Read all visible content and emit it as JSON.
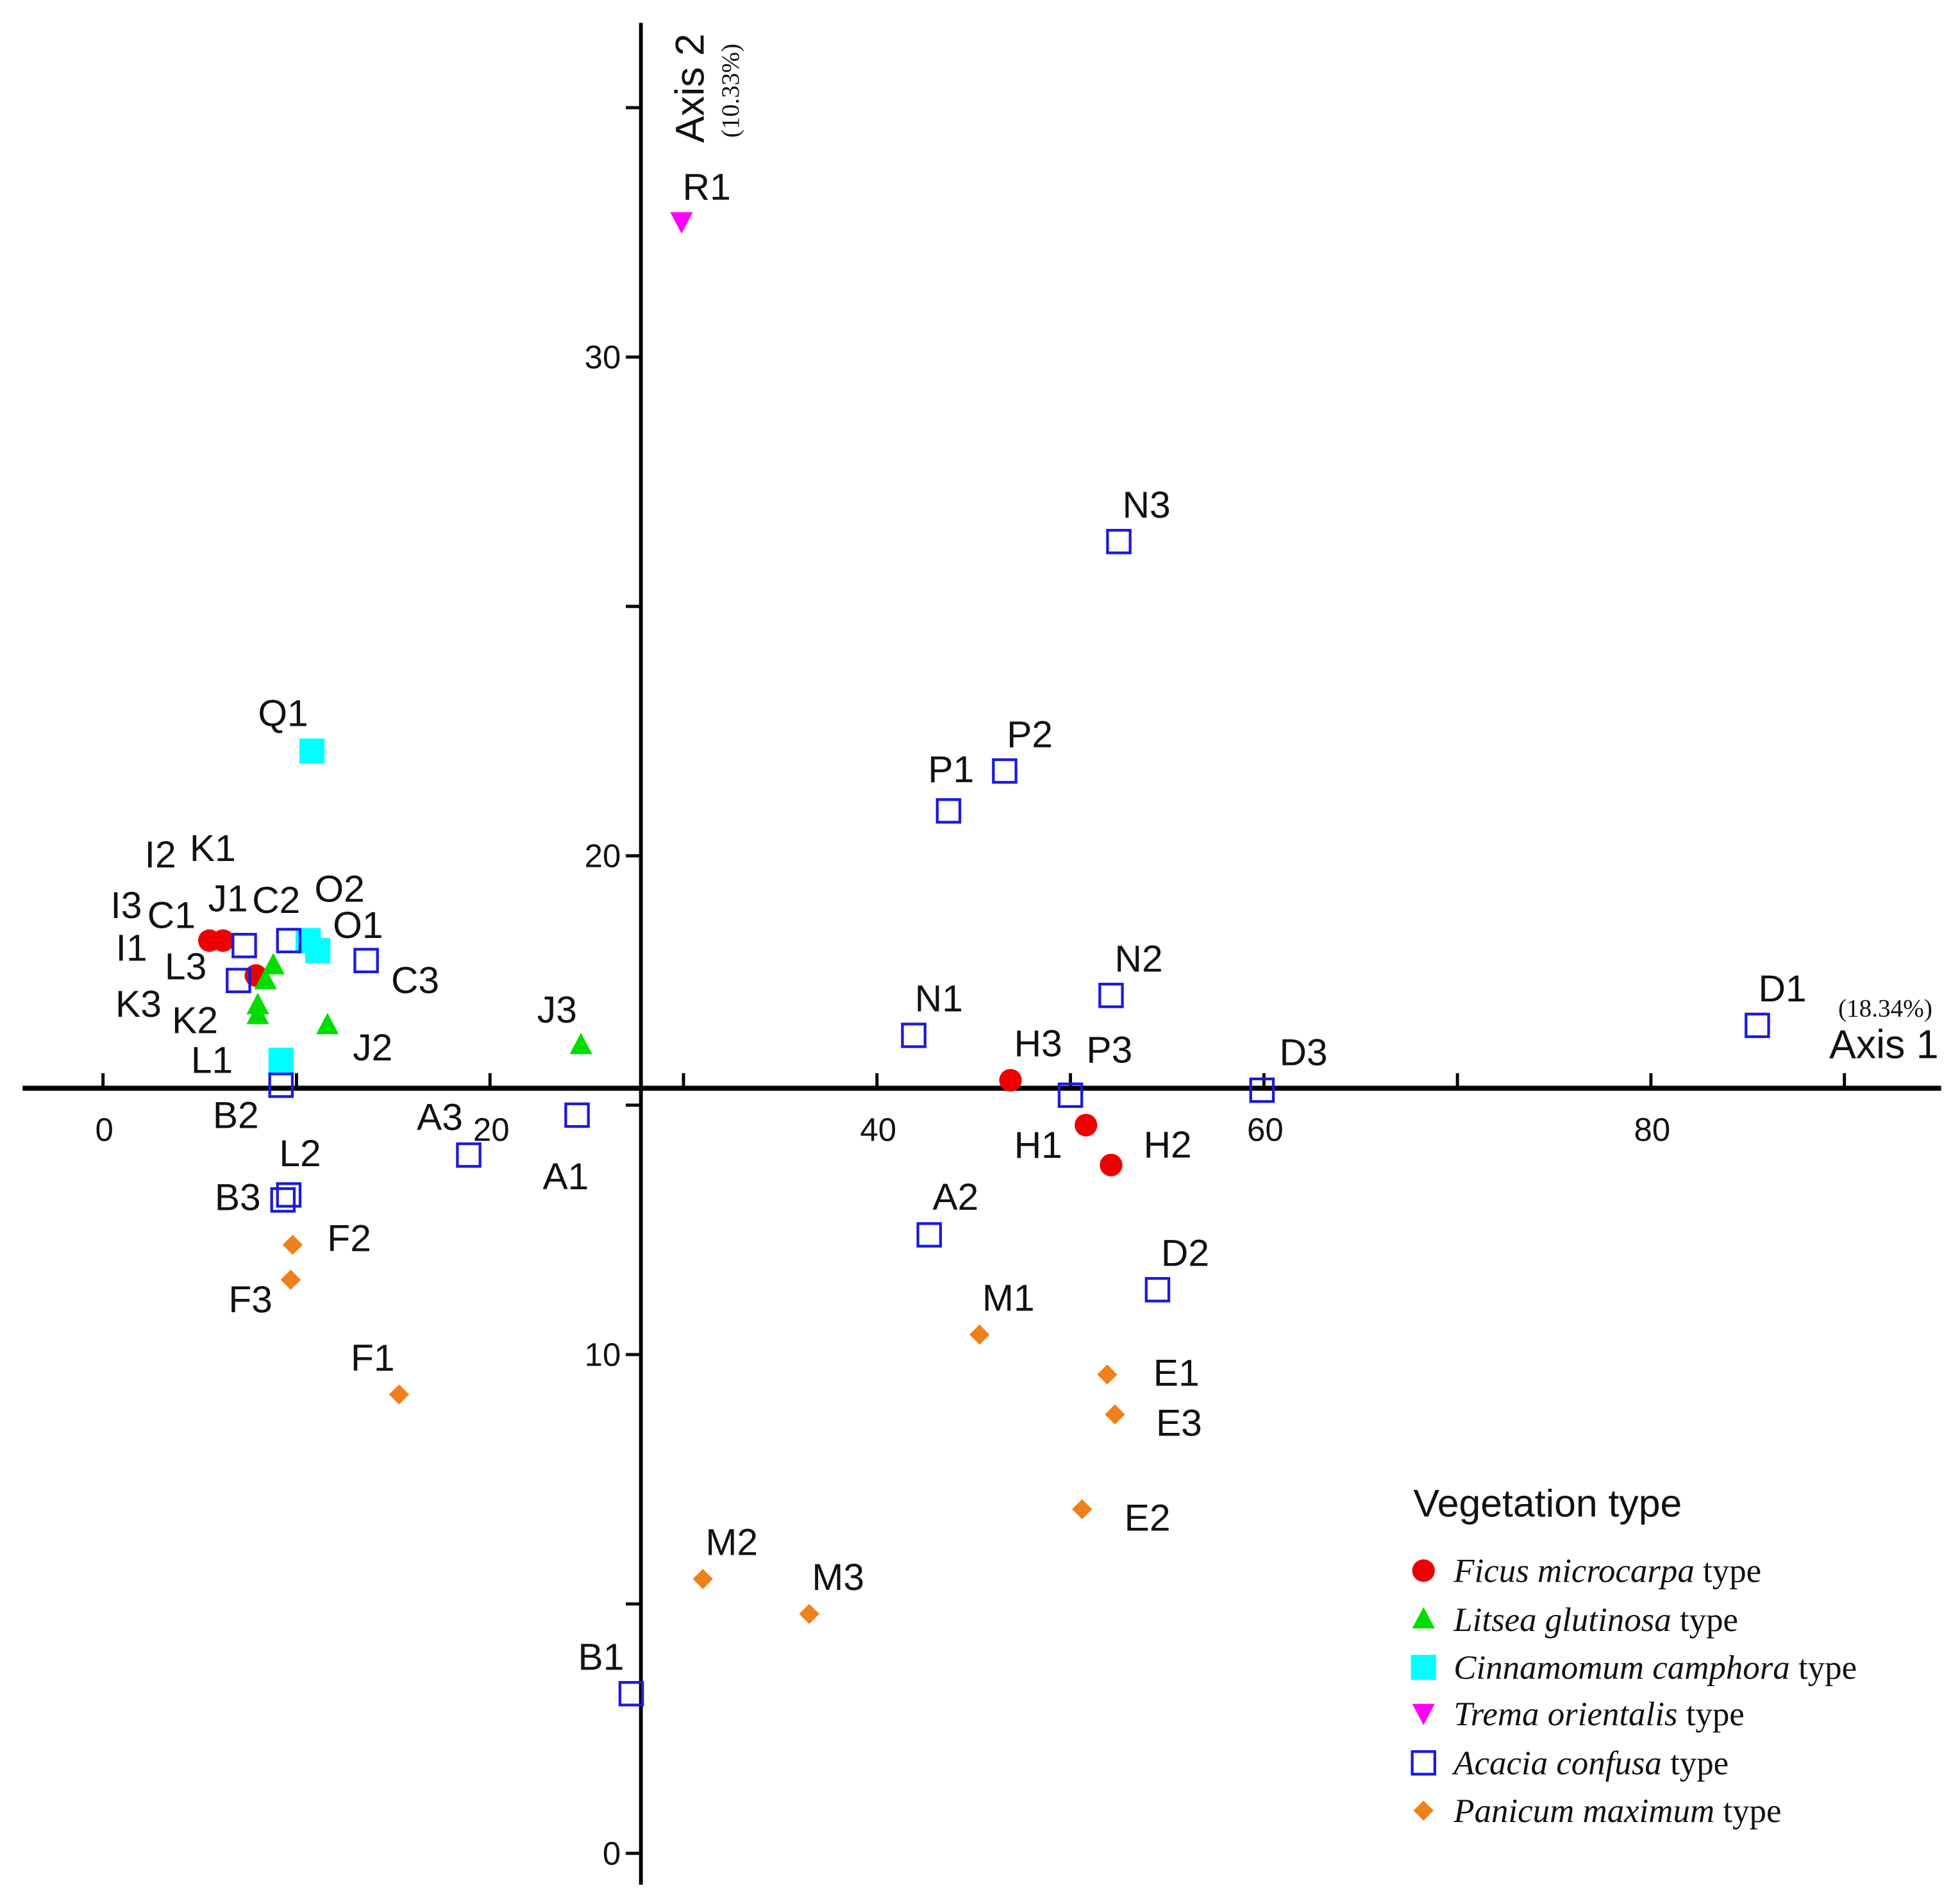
{
  "chart_data": {
    "type": "scatter",
    "title": "",
    "xlabel": "Axis 1",
    "xlabel_pct": "(18.34%)",
    "ylabel": "Axis 2",
    "ylabel_pct": "(10.33%)",
    "xlim": [
      -4,
      95
    ],
    "ylim": [
      -0.6,
      36.5
    ],
    "axes_cross": {
      "x": 27.8,
      "y": 15.34
    },
    "x_ticks": [
      0,
      10,
      20,
      30,
      40,
      50,
      60,
      70,
      80,
      90
    ],
    "x_tick_labels": [
      "0",
      "20",
      "40",
      "60",
      "80"
    ],
    "x_tick_label_values": [
      0,
      20,
      40,
      60,
      80
    ],
    "y_ticks": [
      0,
      5,
      10,
      15,
      20,
      25,
      30,
      35
    ],
    "y_tick_labels": [
      "0",
      "10",
      "20",
      "30"
    ],
    "y_tick_label_values": [
      0,
      10,
      20,
      30
    ],
    "grid": false,
    "legend": {
      "title": "Vegetation type",
      "placement": "bottom-right",
      "suffix": " type"
    },
    "series": [
      {
        "name": "Ficus microcarpa",
        "marker": "circle",
        "color": "#ee0000",
        "points": [
          {
            "label": "I1",
            "x": 5.5,
            "y": 18.3
          },
          {
            "label": "I3",
            "x": 6.2,
            "y": 18.3
          },
          {
            "label": "I2",
            "x": 7.9,
            "y": 17.6
          },
          {
            "label": "H3",
            "x": 46.9,
            "y": 15.5
          },
          {
            "label": "H1",
            "x": 50.8,
            "y": 14.6
          },
          {
            "label": "H2",
            "x": 52.1,
            "y": 13.8
          }
        ]
      },
      {
        "name": "Litsea glutinosa",
        "marker": "triangle-up",
        "color": "#00dd00",
        "points": [
          {
            "label": "J1",
            "x": 8.8,
            "y": 17.8
          },
          {
            "label": "K1",
            "x": 8.4,
            "y": 17.5
          },
          {
            "label": "K2",
            "x": 8.0,
            "y": 17.0
          },
          {
            "label": "K3",
            "x": 8.0,
            "y": 16.8
          },
          {
            "label": "J2",
            "x": 11.6,
            "y": 16.6
          },
          {
            "label": "J3",
            "x": 24.7,
            "y": 16.2
          }
        ]
      },
      {
        "name": "Cinnamomum camphora",
        "marker": "square-filled",
        "color": "#00ffff",
        "points": [
          {
            "label": "Q1",
            "x": 10.8,
            "y": 22.1
          },
          {
            "label": "O2",
            "x": 10.6,
            "y": 18.3
          },
          {
            "label": "O1",
            "x": 11.1,
            "y": 18.1
          },
          {
            "label": "L1",
            "x": 9.2,
            "y": 15.9
          }
        ]
      },
      {
        "name": "Trema orientalis",
        "marker": "triangle-down",
        "color": "#ff00ff",
        "points": [
          {
            "label": "R1",
            "x": 29.9,
            "y": 32.7
          }
        ]
      },
      {
        "name": "Acacia confusa",
        "marker": "square-open",
        "color": "#1a1adf",
        "points": [
          {
            "label": "N3",
            "x": 52.5,
            "y": 26.3
          },
          {
            "label": "P2",
            "x": 46.6,
            "y": 21.7
          },
          {
            "label": "P1",
            "x": 43.7,
            "y": 20.9
          },
          {
            "label": "N2",
            "x": 52.1,
            "y": 17.2
          },
          {
            "label": "N1",
            "x": 41.9,
            "y": 16.4
          },
          {
            "label": "D1",
            "x": 85.5,
            "y": 16.6
          },
          {
            "label": "D3",
            "x": 59.9,
            "y": 15.3
          },
          {
            "label": "P3",
            "x": 50.0,
            "y": 15.2
          },
          {
            "label": "A1",
            "x": 24.5,
            "y": 14.8
          },
          {
            "label": "A3",
            "x": 18.9,
            "y": 14.0
          },
          {
            "label": "L2",
            "x": 9.6,
            "y": 13.2
          },
          {
            "label": "B3",
            "x": 9.3,
            "y": 13.1
          },
          {
            "label": "A2",
            "x": 42.7,
            "y": 12.4
          },
          {
            "label": "D2",
            "x": 54.5,
            "y": 11.3
          },
          {
            "label": "B1",
            "x": 27.3,
            "y": 3.2
          },
          {
            "label": "C1",
            "x": 7.3,
            "y": 18.2
          },
          {
            "label": "C2",
            "x": 9.6,
            "y": 18.3
          },
          {
            "label": "C3",
            "x": 13.6,
            "y": 17.9
          },
          {
            "label": "L3",
            "x": 7.0,
            "y": 17.5
          },
          {
            "label": "B2",
            "x": 9.2,
            "y": 15.4
          }
        ]
      },
      {
        "name": "Panicum maximum",
        "marker": "diamond",
        "color": "#f0801a",
        "points": [
          {
            "label": "F2",
            "x": 9.8,
            "y": 12.2
          },
          {
            "label": "F3",
            "x": 9.7,
            "y": 11.5
          },
          {
            "label": "F1",
            "x": 15.3,
            "y": 9.2
          },
          {
            "label": "M1",
            "x": 45.3,
            "y": 10.4
          },
          {
            "label": "E1",
            "x": 51.9,
            "y": 9.6
          },
          {
            "label": "E3",
            "x": 52.3,
            "y": 8.8
          },
          {
            "label": "E2",
            "x": 50.6,
            "y": 6.9
          },
          {
            "label": "M2",
            "x": 31.0,
            "y": 5.5
          },
          {
            "label": "M3",
            "x": 36.5,
            "y": 4.8
          }
        ]
      }
    ]
  }
}
